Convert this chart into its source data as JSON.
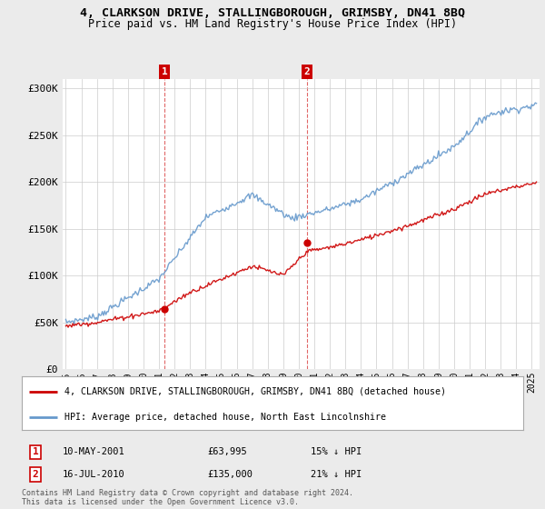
{
  "title": "4, CLARKSON DRIVE, STALLINGBOROUGH, GRIMSBY, DN41 8BQ",
  "subtitle": "Price paid vs. HM Land Registry's House Price Index (HPI)",
  "background_color": "#ebebeb",
  "plot_bg_color": "#ffffff",
  "ylim": [
    0,
    310000
  ],
  "yticks": [
    0,
    50000,
    100000,
    150000,
    200000,
    250000,
    300000
  ],
  "ytick_labels": [
    "£0",
    "£50K",
    "£100K",
    "£150K",
    "£200K",
    "£250K",
    "£300K"
  ],
  "xmin": 1994.8,
  "xmax": 2025.5,
  "marker1_x": 2001.36,
  "marker1_y": 63995,
  "marker2_x": 2010.54,
  "marker2_y": 135000,
  "legend_line1": "4, CLARKSON DRIVE, STALLINGBOROUGH, GRIMSBY, DN41 8BQ (detached house)",
  "legend_line2": "HPI: Average price, detached house, North East Lincolnshire",
  "footer": "Contains HM Land Registry data © Crown copyright and database right 2024.\nThis data is licensed under the Open Government Licence v3.0.",
  "red_color": "#cc0000",
  "blue_color": "#6699cc",
  "vline_color": "#cc0000",
  "grid_color": "#cccccc",
  "title_fontsize": 9.5,
  "subtitle_fontsize": 8.5,
  "ytick_fontsize": 8,
  "xtick_fontsize": 7
}
